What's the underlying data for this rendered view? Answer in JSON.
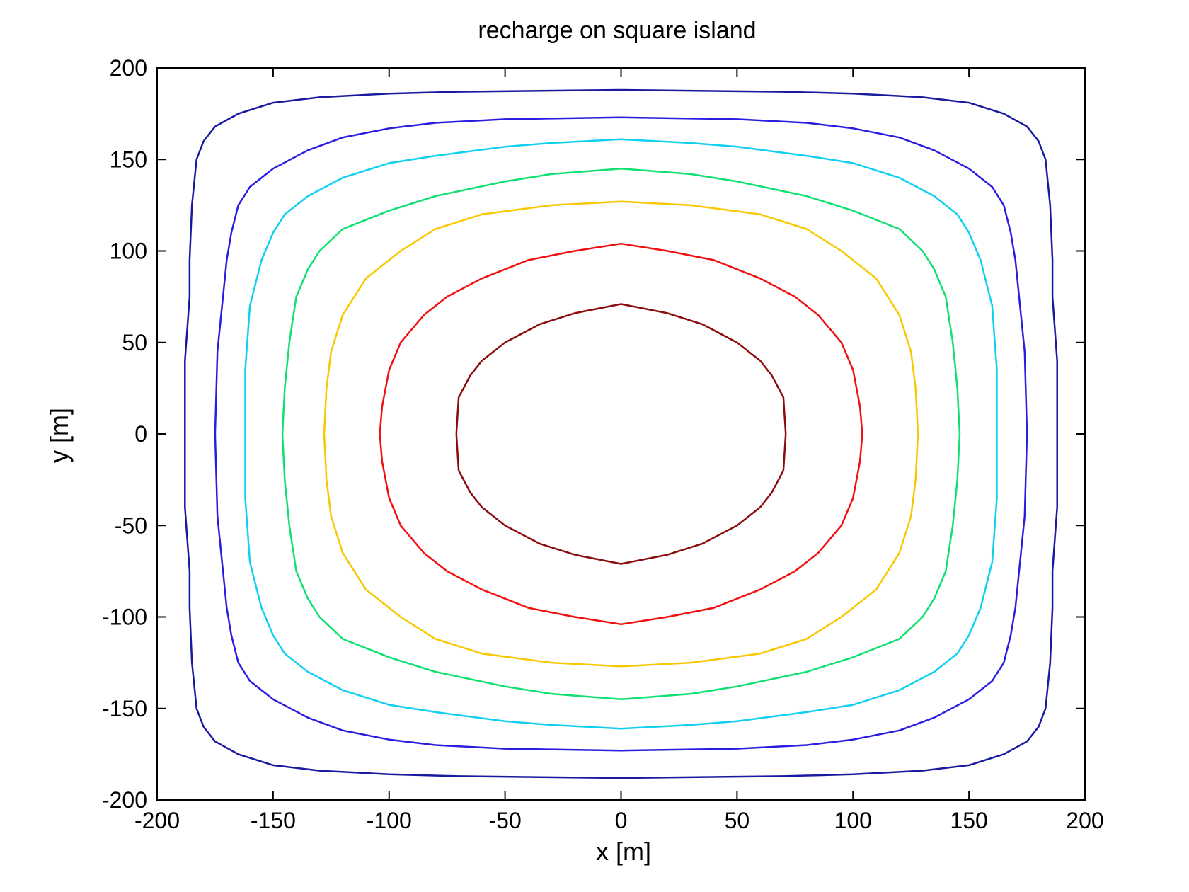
{
  "chart_data": {
    "type": "contour",
    "title": "recharge on square island",
    "xlabel": "x [m]",
    "ylabel": "y [m]",
    "xlim": [
      -200,
      200
    ],
    "ylim": [
      -200,
      200
    ],
    "xticks": [
      -200,
      -150,
      -100,
      -50,
      0,
      50,
      100,
      150,
      200
    ],
    "yticks": [
      -200,
      -150,
      -100,
      -50,
      0,
      50,
      100,
      150,
      200
    ],
    "grid": false,
    "legend": false,
    "series": [
      {
        "color": "#1a1aa0",
        "points": [
          [
            -188,
            0
          ],
          [
            -188,
            40
          ],
          [
            -186,
            75
          ],
          [
            -186,
            95
          ],
          [
            -185,
            125
          ],
          [
            -183,
            150
          ],
          [
            -180,
            160
          ],
          [
            -175,
            168
          ],
          [
            -165,
            175
          ],
          [
            -150,
            181
          ],
          [
            -130,
            184
          ],
          [
            -100,
            186
          ],
          [
            -70,
            187
          ],
          [
            0,
            188
          ],
          [
            70,
            187
          ],
          [
            100,
            186
          ],
          [
            130,
            184
          ],
          [
            150,
            181
          ],
          [
            165,
            175
          ],
          [
            175,
            168
          ],
          [
            180,
            160
          ],
          [
            183,
            150
          ],
          [
            185,
            125
          ],
          [
            186,
            95
          ],
          [
            186,
            75
          ],
          [
            188,
            40
          ],
          [
            188,
            0
          ],
          [
            188,
            -40
          ],
          [
            186,
            -75
          ],
          [
            186,
            -95
          ],
          [
            185,
            -125
          ],
          [
            183,
            -150
          ],
          [
            180,
            -160
          ],
          [
            175,
            -168
          ],
          [
            165,
            -175
          ],
          [
            150,
            -181
          ],
          [
            130,
            -184
          ],
          [
            100,
            -186
          ],
          [
            70,
            -187
          ],
          [
            0,
            -188
          ],
          [
            -70,
            -187
          ],
          [
            -100,
            -186
          ],
          [
            -130,
            -184
          ],
          [
            -150,
            -181
          ],
          [
            -165,
            -175
          ],
          [
            -175,
            -168
          ],
          [
            -180,
            -160
          ],
          [
            -183,
            -150
          ],
          [
            -185,
            -125
          ],
          [
            -186,
            -95
          ],
          [
            -186,
            -75
          ],
          [
            -188,
            -40
          ],
          [
            -188,
            0
          ]
        ]
      },
      {
        "color": "#2a1de0",
        "points": [
          [
            -175,
            0
          ],
          [
            -174,
            45
          ],
          [
            -170,
            95
          ],
          [
            -168,
            110
          ],
          [
            -165,
            125
          ],
          [
            -160,
            135
          ],
          [
            -150,
            145
          ],
          [
            -135,
            155
          ],
          [
            -120,
            162
          ],
          [
            -100,
            167
          ],
          [
            -80,
            170
          ],
          [
            -50,
            172
          ],
          [
            0,
            173
          ],
          [
            50,
            172
          ],
          [
            80,
            170
          ],
          [
            100,
            167
          ],
          [
            120,
            162
          ],
          [
            135,
            155
          ],
          [
            150,
            145
          ],
          [
            160,
            135
          ],
          [
            165,
            125
          ],
          [
            168,
            110
          ],
          [
            170,
            95
          ],
          [
            174,
            45
          ],
          [
            175,
            0
          ],
          [
            174,
            -45
          ],
          [
            170,
            -95
          ],
          [
            168,
            -110
          ],
          [
            165,
            -125
          ],
          [
            160,
            -135
          ],
          [
            150,
            -145
          ],
          [
            135,
            -155
          ],
          [
            120,
            -162
          ],
          [
            100,
            -167
          ],
          [
            80,
            -170
          ],
          [
            50,
            -172
          ],
          [
            0,
            -173
          ],
          [
            -50,
            -172
          ],
          [
            -80,
            -170
          ],
          [
            -100,
            -167
          ],
          [
            -120,
            -162
          ],
          [
            -135,
            -155
          ],
          [
            -150,
            -145
          ],
          [
            -160,
            -135
          ],
          [
            -165,
            -125
          ],
          [
            -168,
            -110
          ],
          [
            -170,
            -95
          ],
          [
            -174,
            -45
          ],
          [
            -175,
            0
          ]
        ]
      },
      {
        "color": "#10d0f0",
        "points": [
          [
            -162,
            0
          ],
          [
            -162,
            35
          ],
          [
            -160,
            70
          ],
          [
            -155,
            95
          ],
          [
            -150,
            110
          ],
          [
            -145,
            120
          ],
          [
            -135,
            130
          ],
          [
            -120,
            140
          ],
          [
            -100,
            148
          ],
          [
            -80,
            152
          ],
          [
            -50,
            157
          ],
          [
            -30,
            159
          ],
          [
            0,
            161
          ],
          [
            30,
            159
          ],
          [
            50,
            157
          ],
          [
            80,
            152
          ],
          [
            100,
            148
          ],
          [
            120,
            140
          ],
          [
            135,
            130
          ],
          [
            145,
            120
          ],
          [
            150,
            110
          ],
          [
            155,
            95
          ],
          [
            160,
            70
          ],
          [
            162,
            35
          ],
          [
            162,
            0
          ],
          [
            162,
            -35
          ],
          [
            160,
            -70
          ],
          [
            155,
            -95
          ],
          [
            150,
            -110
          ],
          [
            145,
            -120
          ],
          [
            135,
            -130
          ],
          [
            120,
            -140
          ],
          [
            100,
            -148
          ],
          [
            80,
            -152
          ],
          [
            50,
            -157
          ],
          [
            30,
            -159
          ],
          [
            0,
            -161
          ],
          [
            -30,
            -159
          ],
          [
            -50,
            -157
          ],
          [
            -80,
            -152
          ],
          [
            -100,
            -148
          ],
          [
            -120,
            -140
          ],
          [
            -135,
            -130
          ],
          [
            -145,
            -120
          ],
          [
            -150,
            -110
          ],
          [
            -155,
            -95
          ],
          [
            -160,
            -70
          ],
          [
            -162,
            -35
          ],
          [
            -162,
            0
          ]
        ]
      },
      {
        "color": "#10e070",
        "points": [
          [
            -146,
            0
          ],
          [
            -145,
            25
          ],
          [
            -143,
            50
          ],
          [
            -140,
            75
          ],
          [
            -135,
            90
          ],
          [
            -130,
            100
          ],
          [
            -120,
            112
          ],
          [
            -100,
            122
          ],
          [
            -80,
            130
          ],
          [
            -50,
            138
          ],
          [
            -30,
            142
          ],
          [
            0,
            145
          ],
          [
            30,
            142
          ],
          [
            50,
            138
          ],
          [
            80,
            130
          ],
          [
            100,
            122
          ],
          [
            120,
            112
          ],
          [
            130,
            100
          ],
          [
            135,
            90
          ],
          [
            140,
            75
          ],
          [
            143,
            50
          ],
          [
            145,
            25
          ],
          [
            146,
            0
          ],
          [
            145,
            -25
          ],
          [
            143,
            -50
          ],
          [
            140,
            -75
          ],
          [
            135,
            -90
          ],
          [
            130,
            -100
          ],
          [
            120,
            -112
          ],
          [
            100,
            -122
          ],
          [
            80,
            -130
          ],
          [
            50,
            -138
          ],
          [
            30,
            -142
          ],
          [
            0,
            -145
          ],
          [
            -30,
            -142
          ],
          [
            -50,
            -138
          ],
          [
            -80,
            -130
          ],
          [
            -100,
            -122
          ],
          [
            -120,
            -112
          ],
          [
            -130,
            -100
          ],
          [
            -135,
            -90
          ],
          [
            -140,
            -75
          ],
          [
            -143,
            -50
          ],
          [
            -145,
            -25
          ],
          [
            -146,
            0
          ]
        ]
      },
      {
        "color": "#f7c800",
        "points": [
          [
            -128,
            0
          ],
          [
            -127,
            25
          ],
          [
            -125,
            45
          ],
          [
            -120,
            65
          ],
          [
            -110,
            85
          ],
          [
            -95,
            100
          ],
          [
            -80,
            112
          ],
          [
            -60,
            120
          ],
          [
            -30,
            125
          ],
          [
            0,
            127
          ],
          [
            30,
            125
          ],
          [
            60,
            120
          ],
          [
            80,
            112
          ],
          [
            95,
            100
          ],
          [
            110,
            85
          ],
          [
            120,
            65
          ],
          [
            125,
            45
          ],
          [
            127,
            25
          ],
          [
            128,
            0
          ],
          [
            127,
            -25
          ],
          [
            125,
            -45
          ],
          [
            120,
            -65
          ],
          [
            110,
            -85
          ],
          [
            95,
            -100
          ],
          [
            80,
            -112
          ],
          [
            60,
            -120
          ],
          [
            30,
            -125
          ],
          [
            0,
            -127
          ],
          [
            -30,
            -125
          ],
          [
            -60,
            -120
          ],
          [
            -80,
            -112
          ],
          [
            -95,
            -100
          ],
          [
            -110,
            -85
          ],
          [
            -120,
            -65
          ],
          [
            -125,
            -45
          ],
          [
            -127,
            -25
          ],
          [
            -128,
            0
          ]
        ]
      },
      {
        "color": "#f01010",
        "points": [
          [
            -104,
            0
          ],
          [
            -103,
            15
          ],
          [
            -100,
            35
          ],
          [
            -95,
            50
          ],
          [
            -85,
            65
          ],
          [
            -75,
            75
          ],
          [
            -60,
            85
          ],
          [
            -40,
            95
          ],
          [
            -20,
            100
          ],
          [
            0,
            104
          ],
          [
            20,
            100
          ],
          [
            40,
            95
          ],
          [
            60,
            85
          ],
          [
            75,
            75
          ],
          [
            85,
            65
          ],
          [
            95,
            50
          ],
          [
            100,
            35
          ],
          [
            103,
            15
          ],
          [
            104,
            0
          ],
          [
            103,
            -15
          ],
          [
            100,
            -35
          ],
          [
            95,
            -50
          ],
          [
            85,
            -65
          ],
          [
            75,
            -75
          ],
          [
            60,
            -85
          ],
          [
            40,
            -95
          ],
          [
            20,
            -100
          ],
          [
            0,
            -104
          ],
          [
            -20,
            -100
          ],
          [
            -40,
            -95
          ],
          [
            -60,
            -85
          ],
          [
            -75,
            -75
          ],
          [
            -85,
            -65
          ],
          [
            -95,
            -50
          ],
          [
            -100,
            -35
          ],
          [
            -103,
            -15
          ],
          [
            -104,
            0
          ]
        ]
      },
      {
        "color": "#8a0c0c",
        "points": [
          [
            -71,
            0
          ],
          [
            -70,
            20
          ],
          [
            -65,
            32
          ],
          [
            -60,
            40
          ],
          [
            -50,
            50
          ],
          [
            -35,
            60
          ],
          [
            -20,
            66
          ],
          [
            0,
            71
          ],
          [
            20,
            66
          ],
          [
            35,
            60
          ],
          [
            50,
            50
          ],
          [
            60,
            40
          ],
          [
            65,
            32
          ],
          [
            70,
            20
          ],
          [
            71,
            0
          ],
          [
            70,
            -20
          ],
          [
            65,
            -32
          ],
          [
            60,
            -40
          ],
          [
            50,
            -50
          ],
          [
            35,
            -60
          ],
          [
            20,
            -66
          ],
          [
            0,
            -71
          ],
          [
            -20,
            -66
          ],
          [
            -35,
            -60
          ],
          [
            -50,
            -50
          ],
          [
            -60,
            -40
          ],
          [
            -65,
            -32
          ],
          [
            -70,
            -20
          ],
          [
            -71,
            0
          ]
        ]
      }
    ]
  }
}
